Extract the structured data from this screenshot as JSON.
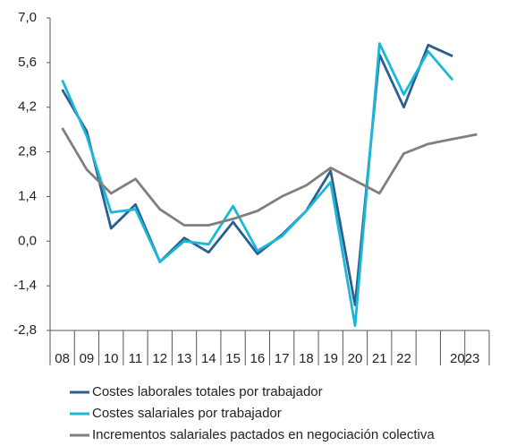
{
  "chart_data": {
    "type": "line",
    "categories": [
      "08",
      "09",
      "10",
      "11",
      "12",
      "13",
      "14",
      "15",
      "16",
      "17",
      "18",
      "19",
      "20",
      "21",
      "22",
      null,
      "2023",
      null
    ],
    "series": [
      {
        "name": "Costes laborales totales por trabajador",
        "color": "#2a5f8f",
        "values": [
          4.75,
          3.45,
          0.4,
          1.15,
          -0.65,
          0.1,
          -0.35,
          0.6,
          -0.4,
          0.2,
          0.95,
          2.2,
          -2.0,
          5.85,
          4.2,
          6.15,
          5.8,
          null
        ]
      },
      {
        "name": "Costes salariales por trabajador",
        "color": "#1ab8d8",
        "values": [
          5.05,
          3.3,
          0.9,
          1.0,
          -0.65,
          0.0,
          -0.1,
          1.1,
          -0.3,
          0.15,
          0.95,
          1.85,
          -2.65,
          6.2,
          4.6,
          5.95,
          5.05,
          null
        ]
      },
      {
        "name": "Incrementos salariales pactados en negociación colectiva",
        "color": "#7f7f7f",
        "values": [
          3.55,
          2.25,
          1.5,
          1.95,
          1.0,
          0.5,
          0.5,
          0.7,
          0.95,
          1.4,
          1.75,
          2.3,
          1.9,
          1.5,
          2.75,
          3.05,
          3.2,
          3.35
        ]
      }
    ],
    "ylim": [
      -2.8,
      7.0
    ],
    "yticks": [
      {
        "value": -2.8,
        "label": "-2,8"
      },
      {
        "value": -1.4,
        "label": "-1,4"
      },
      {
        "value": 0,
        "label": "0,0"
      },
      {
        "value": 1.4,
        "label": "1,4"
      },
      {
        "value": 2.8,
        "label": "2,8"
      },
      {
        "value": 4.2,
        "label": "4,2"
      },
      {
        "value": 5.6,
        "label": "5,6"
      },
      {
        "value": 7.0,
        "label": "7,0"
      }
    ],
    "grid": false
  }
}
